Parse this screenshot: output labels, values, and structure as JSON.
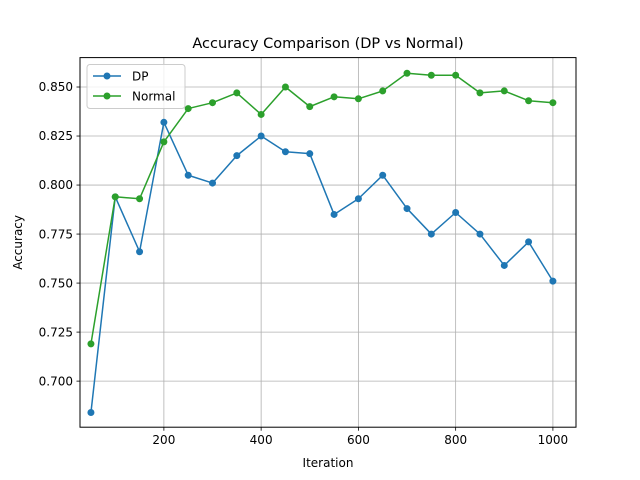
{
  "chart_data": {
    "type": "line",
    "title": "Accuracy Comparison (DP vs Normal)",
    "xlabel": "Iteration",
    "ylabel": "Accuracy",
    "xlim": [
      27.5,
      1047.5
    ],
    "ylim": [
      0.6765,
      0.865
    ],
    "x_ticks": [
      200,
      400,
      600,
      800,
      1000
    ],
    "y_ticks": [
      0.7,
      0.725,
      0.75,
      0.775,
      0.8,
      0.825,
      0.85
    ],
    "grid": true,
    "legend_position": "upper left",
    "x": [
      50,
      100,
      150,
      200,
      250,
      300,
      350,
      400,
      450,
      500,
      550,
      600,
      650,
      700,
      750,
      800,
      850,
      900,
      950,
      1000
    ],
    "series": [
      {
        "name": "DP",
        "color": "#1f77b4",
        "marker": "circle",
        "values": [
          0.684,
          0.794,
          0.766,
          0.832,
          0.805,
          0.801,
          0.815,
          0.825,
          0.817,
          0.816,
          0.785,
          0.793,
          0.805,
          0.788,
          0.775,
          0.786,
          0.775,
          0.759,
          0.771,
          0.751
        ]
      },
      {
        "name": "Normal",
        "color": "#2ca02c",
        "marker": "circle",
        "values": [
          0.719,
          0.794,
          0.793,
          0.822,
          0.839,
          0.842,
          0.847,
          0.836,
          0.85,
          0.84,
          0.845,
          0.844,
          0.848,
          0.857,
          0.856,
          0.856,
          0.847,
          0.848,
          0.843,
          0.842
        ]
      }
    ]
  }
}
